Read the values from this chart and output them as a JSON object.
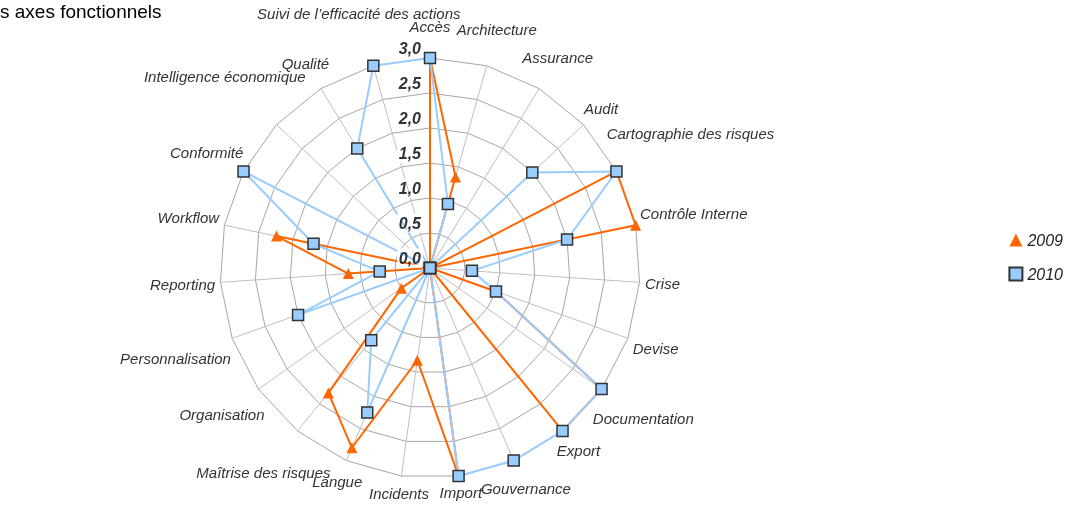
{
  "chart_data": {
    "type": "radar",
    "title": "s axes fonctionnels",
    "categories": [
      "Accès",
      "Architecture",
      "Assurance",
      "Audit",
      "Cartographie des risques",
      "Contrôle Interne",
      "Crise",
      "Devise",
      "Documentation",
      "Export",
      "Gouvernance",
      "Import",
      "Incidents",
      "Langue",
      "Maîtrise des risques",
      "Organisation",
      "Personnalisation",
      "Reporting",
      "Workflow",
      "Conformité",
      "Intelligence économique",
      "Qualité",
      "Suivi de l’efficacité des actions"
    ],
    "series": [
      {
        "name": "2009",
        "color": "#ff6600",
        "marker": "triangle",
        "values": [
          3.0,
          1.35,
          0,
          0,
          3.0,
          3.0,
          0,
          1.0,
          3.0,
          3.0,
          0,
          3.0,
          1.33,
          2.8,
          2.3,
          0.5,
          0,
          1.17,
          2.24,
          0,
          0,
          0,
          0
        ]
      },
      {
        "name": "2010",
        "color": "#99ccff",
        "marker": "square",
        "values": [
          3.0,
          0.95,
          0,
          2.0,
          3.0,
          2.0,
          0.6,
          1.0,
          3.0,
          3.0,
          3.0,
          3.0,
          0,
          2.25,
          1.33,
          0,
          2.0,
          0.72,
          1.7,
          3.0,
          0,
          2.0,
          3.0
        ]
      }
    ],
    "ylim": [
      0,
      3
    ],
    "yticks": [
      {
        "value": 0,
        "label": "0,0"
      },
      {
        "value": 0.5,
        "label": "0,5"
      },
      {
        "value": 1,
        "label": "1,0"
      },
      {
        "value": 1.5,
        "label": "1,5"
      },
      {
        "value": 2,
        "label": "2,0"
      },
      {
        "value": 2.5,
        "label": "2,5"
      },
      {
        "value": 3,
        "label": "3,0"
      }
    ],
    "grid": true,
    "legend": "right",
    "line_style": "solid"
  }
}
